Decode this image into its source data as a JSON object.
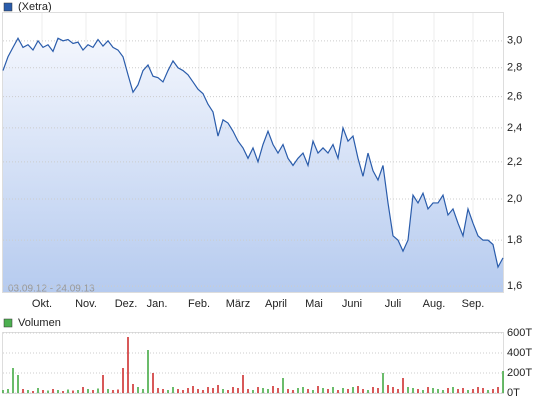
{
  "chart_data": [
    {
      "type": "line",
      "legend_label": "(Xetra)",
      "color": "#2a5cab",
      "area": true,
      "log_scale": true,
      "grid": true,
      "range_label": "03.09.12 - 24.09.13",
      "values": [
        2.78,
        2.88,
        2.95,
        3.02,
        2.95,
        2.97,
        2.93,
        3.0,
        2.95,
        2.97,
        2.92,
        3.02,
        3.0,
        3.01,
        2.98,
        2.99,
        2.93,
        2.97,
        2.95,
        3.01,
        2.96,
        3.0,
        2.95,
        2.93,
        2.88,
        2.75,
        2.63,
        2.68,
        2.78,
        2.82,
        2.74,
        2.73,
        2.7,
        2.78,
        2.85,
        2.8,
        2.78,
        2.75,
        2.7,
        2.65,
        2.62,
        2.55,
        2.5,
        2.35,
        2.45,
        2.43,
        2.38,
        2.32,
        2.28,
        2.22,
        2.28,
        2.2,
        2.3,
        2.38,
        2.3,
        2.25,
        2.3,
        2.22,
        2.18,
        2.22,
        2.25,
        2.18,
        2.32,
        2.25,
        2.28,
        2.25,
        2.3,
        2.22,
        2.4,
        2.32,
        2.35,
        2.22,
        2.12,
        2.25,
        2.15,
        2.1,
        2.18,
        1.98,
        1.82,
        1.8,
        1.75,
        1.8,
        2.02,
        1.98,
        2.03,
        1.95,
        1.98,
        1.98,
        2.02,
        1.92,
        1.95,
        1.88,
        1.82,
        1.95,
        1.88,
        1.82,
        1.8,
        1.8,
        1.78,
        1.68,
        1.72
      ],
      "xlim": [
        0,
        100
      ],
      "xticks": [
        {
          "value": 7.8,
          "label": "Okt."
        },
        {
          "value": 16.6,
          "label": "Nov."
        },
        {
          "value": 24.6,
          "label": "Dez."
        },
        {
          "value": 30.8,
          "label": "Jan."
        },
        {
          "value": 39.2,
          "label": "Feb."
        },
        {
          "value": 47,
          "label": "März"
        },
        {
          "value": 54.6,
          "label": "April"
        },
        {
          "value": 62.2,
          "label": "Mai"
        },
        {
          "value": 69.8,
          "label": "Juni"
        },
        {
          "value": 78,
          "label": "Juli"
        },
        {
          "value": 86.2,
          "label": "Aug."
        },
        {
          "value": 94,
          "label": "Sep."
        }
      ],
      "ylim": [
        1.576,
        3.23
      ],
      "yticks": [
        {
          "value": 1.6,
          "label": "1,6"
        },
        {
          "value": 1.8,
          "label": "1,8"
        },
        {
          "value": 2.0,
          "label": "2,0"
        },
        {
          "value": 2.2,
          "label": "2,2"
        },
        {
          "value": 2.4,
          "label": "2,4"
        },
        {
          "value": 2.6,
          "label": "2,6"
        },
        {
          "value": 2.8,
          "label": "2,8"
        },
        {
          "value": 3.0,
          "label": "3,0"
        }
      ]
    },
    {
      "type": "bar",
      "legend_label": "Volumen",
      "color": "#4caf50",
      "up_color": "#3aa63a",
      "down_color": "#cc2222",
      "grid": true,
      "values": [
        30,
        40,
        250,
        180,
        40,
        30,
        20,
        50,
        30,
        25,
        40,
        30,
        20,
        35,
        25,
        30,
        60,
        40,
        30,
        45,
        180,
        40,
        30,
        35,
        250,
        560,
        90,
        60,
        40,
        430,
        200,
        50,
        40,
        30,
        60,
        40,
        30,
        50,
        70,
        40,
        30,
        60,
        50,
        80,
        40,
        30,
        60,
        50,
        180,
        40,
        30,
        60,
        50,
        40,
        70,
        50,
        150,
        40,
        30,
        50,
        60,
        40,
        30,
        70,
        50,
        40,
        60,
        30,
        50,
        40,
        60,
        70,
        40,
        30,
        60,
        50,
        200,
        80,
        60,
        40,
        150,
        60,
        50,
        40,
        30,
        60,
        50,
        40,
        30,
        50,
        60,
        40,
        50,
        30,
        40,
        60,
        50,
        30,
        40,
        60,
        220
      ],
      "xlim": [
        0,
        100
      ],
      "ylim": [
        0,
        600
      ],
      "yticks": [
        {
          "value": 0,
          "label": "0T"
        },
        {
          "value": 200,
          "label": "200T"
        },
        {
          "value": 400,
          "label": "400T"
        },
        {
          "value": 600,
          "label": "600T"
        }
      ]
    }
  ]
}
